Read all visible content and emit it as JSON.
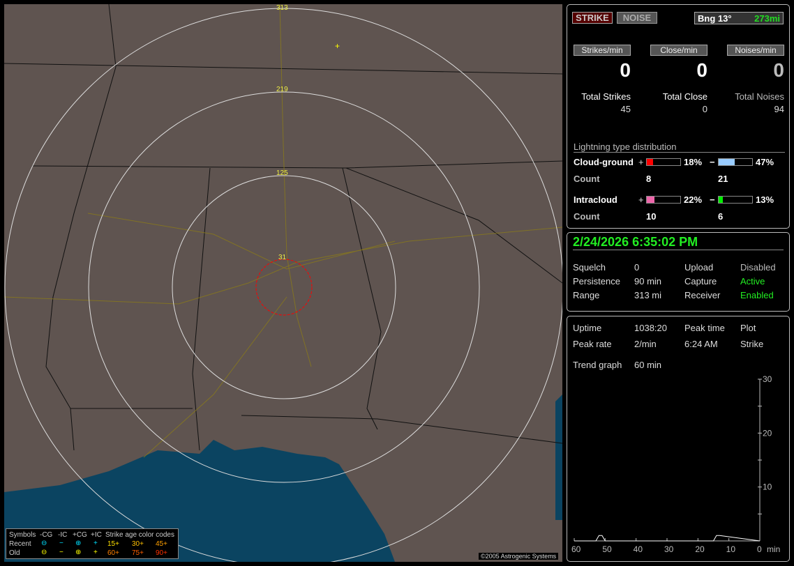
{
  "map": {
    "ring_labels": [
      "31",
      "125",
      "219",
      "313"
    ],
    "copyright": "©2005 Astrogenic Systems",
    "land_color": "#5f5450",
    "water_color": "#0b4461",
    "range_circle_color": "#ff0000"
  },
  "legend": {
    "symbols": "Symbols",
    "neg_cg": "-CG",
    "neg_ic": "-IC",
    "pos_cg": "+CG",
    "pos_ic": "+IC",
    "age_title": "Strike age color codes",
    "recent": "Recent",
    "old": "Old",
    "recent_symbols": [
      "⊖",
      "−",
      "⊕",
      "+"
    ],
    "old_symbols": [
      "⊖",
      "−",
      "⊕",
      "+"
    ],
    "recent_ages": [
      "15+",
      "30+",
      "45+"
    ],
    "old_ages": [
      "60+",
      "75+",
      "90+"
    ],
    "recent_color": "#00e0ff",
    "old_color": "#ffff00",
    "age_colors": [
      "#ffe000",
      "#ffc000",
      "#ffa000",
      "#ff8000",
      "#ff6000",
      "#ff3000"
    ]
  },
  "top": {
    "strike_btn": "STRIKE",
    "noise_btn": "NOISE",
    "bearing": "Bng 13°",
    "distance": "273mi",
    "rates": [
      {
        "label": "Strikes/min",
        "value": "0"
      },
      {
        "label": "Close/min",
        "value": "0"
      },
      {
        "label": "Noises/min",
        "value": "0"
      }
    ],
    "totals": [
      {
        "label": "Total Strikes",
        "value": "45"
      },
      {
        "label": "Total Close",
        "value": "0"
      },
      {
        "label": "Total Noises",
        "value": "94"
      }
    ],
    "dist_title": "Lightning type distribution",
    "cg": {
      "label": "Cloud-ground",
      "pos_sign": "+",
      "pos_pct": "18%",
      "pos_frac": 0.18,
      "neg_sign": "−",
      "neg_pct": "47%",
      "neg_frac": 0.47,
      "count_label": "Count",
      "pos_count": "8",
      "neg_count": "21",
      "pos_color": "#ff0000",
      "neg_color": "#99ccff"
    },
    "ic": {
      "label": "Intracloud",
      "pos_sign": "+",
      "pos_pct": "22%",
      "pos_frac": 0.22,
      "neg_sign": "−",
      "neg_pct": "13%",
      "neg_frac": 0.13,
      "count_label": "Count",
      "pos_count": "10",
      "neg_count": "6",
      "pos_color": "#ee66aa",
      "neg_color": "#00ee00"
    }
  },
  "status": {
    "datetime": "2/24/2026 6:35:02 PM",
    "rows": [
      [
        "Squelch",
        "0",
        "Upload",
        "Disabled"
      ],
      [
        "Persistence",
        "90 min",
        "Capture",
        "Active"
      ],
      [
        "Range",
        "313 mi",
        "Receiver",
        "Enabled"
      ]
    ]
  },
  "stats": {
    "uptime_label": "Uptime",
    "uptime": "1038:20",
    "peak_time_label": "Peak time",
    "plot_label": "Plot",
    "peak_rate_label": "Peak rate",
    "peak_rate": "2/min",
    "peak_time": "6:24 AM",
    "plot": "Strike",
    "trend_label": "Trend graph",
    "trend": "60 min"
  },
  "chart_data": {
    "type": "line",
    "xlabel": "min",
    "x_ticks": [
      "60",
      "50",
      "40",
      "30",
      "20",
      "10",
      "0"
    ],
    "y_ticks": [
      "10",
      "20",
      "30"
    ],
    "xlim": [
      60,
      0
    ],
    "ylim": [
      0,
      30
    ],
    "x": [
      60,
      53,
      52,
      51,
      50,
      15,
      14,
      13,
      0
    ],
    "y": [
      0,
      0,
      1,
      1,
      0,
      0,
      1,
      1,
      0
    ]
  }
}
